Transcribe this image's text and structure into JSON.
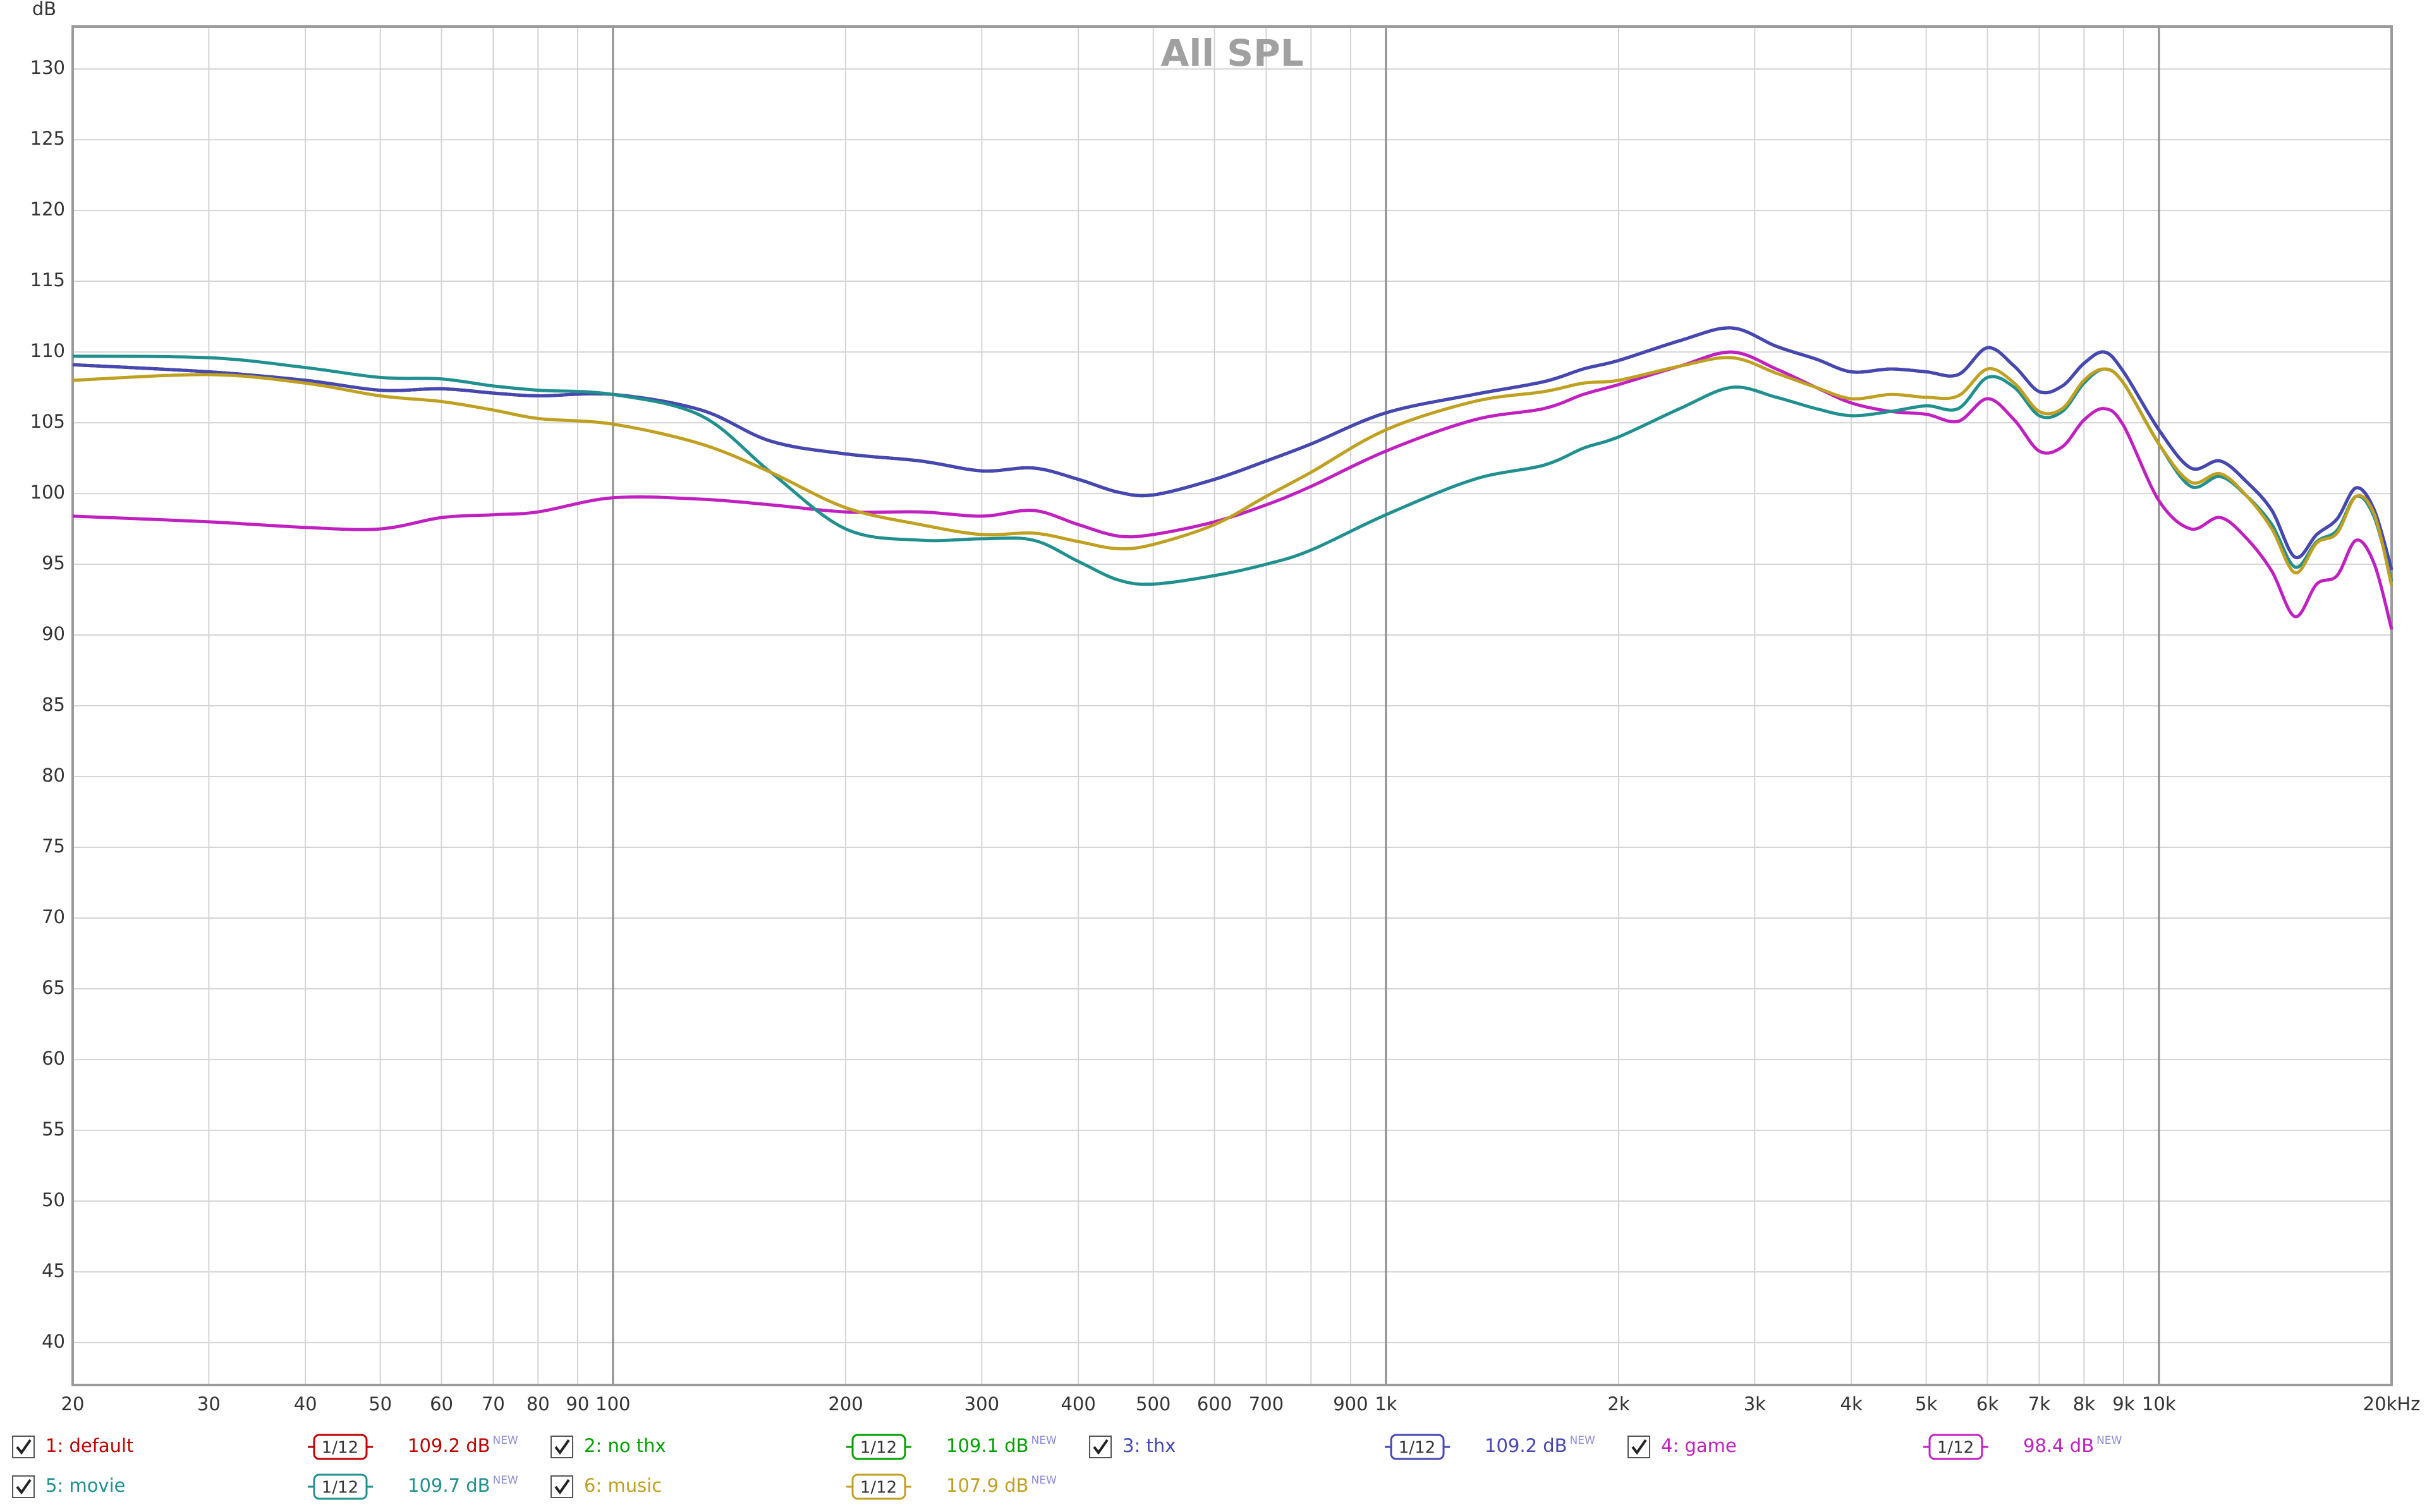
{
  "chart_data": {
    "type": "line",
    "title": "All SPL",
    "y_label": "dB",
    "x_scale": "log",
    "grid": true,
    "xlim": [
      20,
      20000
    ],
    "ylim": [
      37,
      133
    ],
    "xticks": [
      20,
      30,
      40,
      50,
      60,
      70,
      80,
      90,
      100,
      200,
      300,
      400,
      500,
      600,
      700,
      {
        "value": 800,
        "label": null
      },
      900,
      {
        "value": 1000,
        "label": "1k"
      },
      {
        "value": 2000,
        "label": "2k"
      },
      {
        "value": 3000,
        "label": "3k"
      },
      {
        "value": 4000,
        "label": "4k"
      },
      {
        "value": 5000,
        "label": "5k"
      },
      {
        "value": 6000,
        "label": "6k"
      },
      {
        "value": 7000,
        "label": "7k"
      },
      {
        "value": 8000,
        "label": "8k"
      },
      {
        "value": 9000,
        "label": "9k"
      },
      {
        "value": 10000,
        "label": "10k"
      },
      {
        "value": 20000,
        "label": "20kHz"
      }
    ],
    "yticks": [
      40,
      45,
      50,
      55,
      60,
      65,
      70,
      75,
      80,
      85,
      90,
      95,
      100,
      105,
      110,
      115,
      120,
      125,
      130
    ],
    "x": [
      20,
      30,
      40,
      50,
      60,
      70,
      80,
      100,
      130,
      160,
      200,
      250,
      300,
      350,
      400,
      450,
      500,
      600,
      700,
      800,
      1000,
      1300,
      1600,
      1800,
      2000,
      2400,
      2800,
      3200,
      3600,
      4000,
      4500,
      5000,
      5500,
      6000,
      6500,
      7000,
      7500,
      8000,
      8500,
      9000,
      10000,
      11000,
      12000,
      13000,
      14000,
      15000,
      16000,
      17000,
      18000,
      19000,
      20000
    ],
    "series": [
      {
        "name": "1: default",
        "color": "#c00000",
        "smoothing": "1/12",
        "level_label": "109.2 dB",
        "badge": "NEW",
        "values": [
          109.1,
          108.6,
          108.0,
          107.3,
          107.4,
          107.1,
          106.9,
          107.0,
          105.9,
          103.7,
          102.8,
          102.3,
          101.6,
          101.8,
          101.0,
          100.1,
          99.9,
          101.0,
          102.3,
          103.5,
          105.7,
          107.0,
          107.9,
          108.8,
          109.4,
          110.8,
          111.7,
          110.4,
          109.5,
          108.6,
          108.8,
          108.6,
          108.4,
          110.3,
          109.0,
          107.2,
          107.6,
          109.2,
          110.0,
          108.6,
          104.5,
          101.8,
          102.3,
          100.8,
          98.8,
          95.5,
          97.1,
          98.2,
          100.4,
          98.8,
          94.6
        ]
      },
      {
        "name": "2: no thx",
        "color": "#00a000",
        "smoothing": "1/12",
        "level_label": "109.1 dB",
        "badge": "NEW",
        "values": [
          109.1,
          108.6,
          108.0,
          107.3,
          107.4,
          107.1,
          106.9,
          107.0,
          105.9,
          103.7,
          102.8,
          102.3,
          101.6,
          101.8,
          101.0,
          100.1,
          99.9,
          101.0,
          102.3,
          103.5,
          105.7,
          107.0,
          107.9,
          108.8,
          109.4,
          110.8,
          111.7,
          110.4,
          109.5,
          108.6,
          108.8,
          108.6,
          108.4,
          110.3,
          109.0,
          107.2,
          107.6,
          109.2,
          110.0,
          108.6,
          104.5,
          101.8,
          102.3,
          100.8,
          98.8,
          95.5,
          97.1,
          98.2,
          100.4,
          98.8,
          94.6
        ]
      },
      {
        "name": "3: thx",
        "color": "#4646b4",
        "smoothing": "1/12",
        "level_label": "109.2 dB",
        "badge": "NEW",
        "values": [
          109.1,
          108.6,
          108.0,
          107.3,
          107.4,
          107.1,
          106.9,
          107.0,
          105.9,
          103.7,
          102.8,
          102.3,
          101.6,
          101.8,
          101.0,
          100.1,
          99.9,
          101.0,
          102.3,
          103.5,
          105.7,
          107.0,
          107.9,
          108.8,
          109.4,
          110.8,
          111.7,
          110.4,
          109.5,
          108.6,
          108.8,
          108.6,
          108.4,
          110.3,
          109.0,
          107.2,
          107.6,
          109.2,
          110.0,
          108.6,
          104.5,
          101.8,
          102.3,
          100.8,
          98.8,
          95.5,
          97.1,
          98.2,
          100.4,
          98.8,
          94.6
        ]
      },
      {
        "name": "4: game",
        "color": "#c020c0",
        "smoothing": "1/12",
        "level_label": "98.4 dB",
        "badge": "NEW",
        "values": [
          98.4,
          98.0,
          97.6,
          97.5,
          98.3,
          98.5,
          98.7,
          99.7,
          99.6,
          99.2,
          98.7,
          98.7,
          98.4,
          98.8,
          97.8,
          97.0,
          97.1,
          98.0,
          99.2,
          100.5,
          103.0,
          105.2,
          106.0,
          107.0,
          107.7,
          109.0,
          110.0,
          108.8,
          107.5,
          106.4,
          105.8,
          105.6,
          105.1,
          106.7,
          105.2,
          103.0,
          103.3,
          105.2,
          106.0,
          104.8,
          99.5,
          97.5,
          98.3,
          96.8,
          94.5,
          91.3,
          93.6,
          94.2,
          96.7,
          95.0,
          90.4
        ]
      },
      {
        "name": "5: movie",
        "color": "#20908f",
        "smoothing": "1/12",
        "level_label": "109.7 dB",
        "badge": "NEW",
        "values": [
          109.7,
          109.6,
          108.9,
          108.2,
          108.1,
          107.6,
          107.3,
          107.0,
          105.5,
          101.5,
          97.5,
          96.7,
          96.8,
          96.7,
          95.2,
          93.9,
          93.6,
          94.2,
          95.0,
          96.0,
          98.5,
          101.0,
          102.0,
          103.2,
          104.0,
          106.0,
          107.5,
          106.8,
          106.0,
          105.5,
          105.8,
          106.2,
          106.0,
          108.2,
          107.5,
          105.5,
          105.8,
          107.8,
          108.8,
          107.8,
          103.5,
          100.5,
          101.2,
          99.8,
          97.8,
          94.8,
          96.6,
          97.4,
          99.8,
          98.3,
          93.8
        ]
      },
      {
        "name": "6: music",
        "color": "#c0a020",
        "smoothing": "1/12",
        "level_label": "107.9 dB",
        "badge": "NEW",
        "values": [
          108.0,
          108.4,
          107.8,
          106.9,
          106.5,
          105.9,
          105.3,
          104.9,
          103.5,
          101.5,
          99.0,
          97.8,
          97.1,
          97.2,
          96.6,
          96.1,
          96.4,
          97.8,
          99.8,
          101.5,
          104.5,
          106.5,
          107.2,
          107.8,
          108.0,
          109.0,
          109.6,
          108.5,
          107.5,
          106.7,
          107.0,
          106.8,
          106.9,
          108.8,
          107.8,
          105.8,
          106.0,
          108.0,
          108.8,
          107.8,
          103.5,
          100.8,
          101.4,
          99.8,
          97.5,
          94.4,
          96.5,
          97.2,
          99.8,
          98.5,
          93.5
        ]
      }
    ]
  }
}
